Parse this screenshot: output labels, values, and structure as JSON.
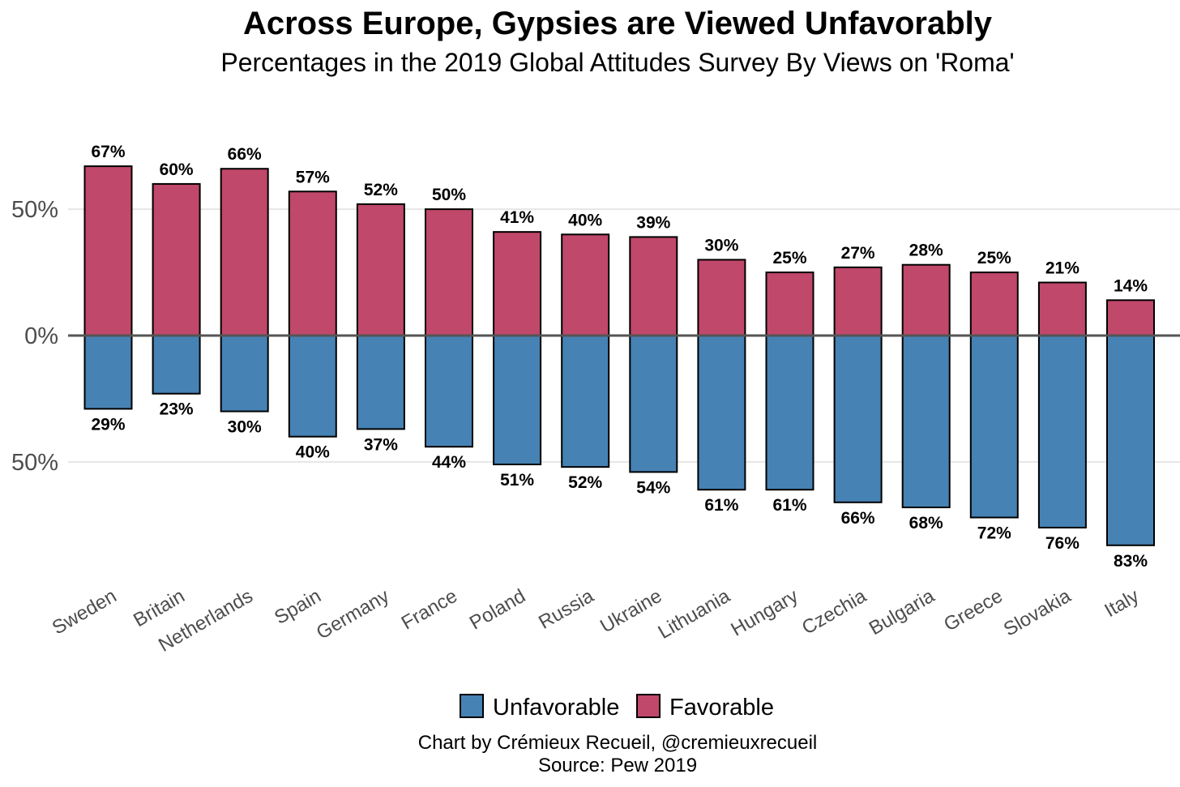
{
  "chart_data": {
    "type": "bar",
    "title": "Across Europe, Gypsies are Viewed Unfavorably",
    "subtitle": "Percentages in the 2019 Global Attitudes Survey By Views on 'Roma'",
    "categories": [
      "Sweden",
      "Britain",
      "Netherlands",
      "Spain",
      "Germany",
      "France",
      "Poland",
      "Russia",
      "Ukraine",
      "Lithuania",
      "Hungary",
      "Czechia",
      "Bulgaria",
      "Greece",
      "Slovakia",
      "Italy"
    ],
    "series": [
      {
        "name": "Favorable",
        "color": "#c0486a",
        "values": [
          67,
          60,
          66,
          57,
          52,
          50,
          41,
          40,
          39,
          30,
          25,
          27,
          28,
          25,
          21,
          14
        ]
      },
      {
        "name": "Unfavorable",
        "color": "#4682b4",
        "values": [
          29,
          23,
          30,
          40,
          37,
          44,
          51,
          52,
          54,
          61,
          61,
          66,
          68,
          72,
          76,
          83
        ]
      }
    ],
    "y_ticks": [
      {
        "value": 50,
        "label": "50%"
      },
      {
        "value": 0,
        "label": "0%"
      },
      {
        "value": -50,
        "label": "50%"
      }
    ],
    "ylim": [
      -83,
      67
    ],
    "label_suffix": "%",
    "legend": [
      {
        "label": "Unfavorable",
        "color": "#4682b4"
      },
      {
        "label": "Favorable",
        "color": "#c0486a"
      }
    ],
    "legend_position": "bottom",
    "grid": true,
    "caption_lines": [
      "Chart by Crémieux Recueil, @cremieuxrecueil",
      "Source: Pew 2019"
    ]
  }
}
